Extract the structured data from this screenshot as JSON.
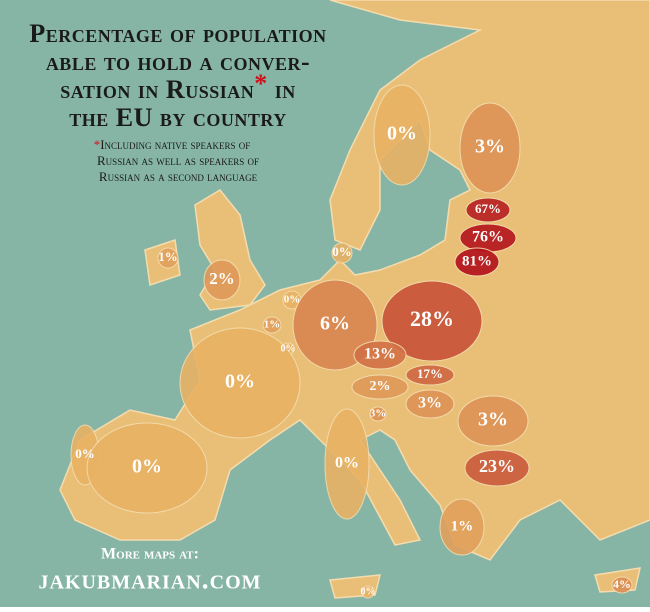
{
  "title": [
    "Percentage of population",
    "able to hold a conver-",
    "sation in Russian",
    "*",
    " in",
    "the EU by country"
  ],
  "footnote": [
    "*",
    "Including native speakers of",
    "Russian as well as speakers of",
    "Russian as a second language"
  ],
  "credit": [
    "More maps at:",
    "jakubmarian.com"
  ],
  "regions": [
    {
      "value": 0,
      "label": "0%"
    },
    {
      "value": 3,
      "label": "3%"
    },
    {
      "value": 67,
      "label": "67%"
    },
    {
      "value": 76,
      "label": "76%"
    },
    {
      "value": 81,
      "label": "81%"
    },
    {
      "value": 1,
      "label": "1%"
    },
    {
      "value": 2,
      "label": "2%"
    },
    {
      "value": 0,
      "label": "0%"
    },
    {
      "value": 0,
      "label": "0%"
    },
    {
      "value": 1,
      "label": "1%"
    },
    {
      "value": 0,
      "label": "0%"
    },
    {
      "value": 6,
      "label": "6%"
    },
    {
      "value": 28,
      "label": "28%"
    },
    {
      "value": 13,
      "label": "13%"
    },
    {
      "value": 17,
      "label": "17%"
    },
    {
      "value": 2,
      "label": "2%"
    },
    {
      "value": 3,
      "label": "3%"
    },
    {
      "value": 3,
      "label": "3%"
    },
    {
      "value": 0,
      "label": "0%"
    },
    {
      "value": 3,
      "label": "3%"
    },
    {
      "value": 0,
      "label": "0%"
    },
    {
      "value": 0,
      "label": "0%"
    },
    {
      "value": 0,
      "label": "0%"
    },
    {
      "value": 23,
      "label": "23%"
    },
    {
      "value": 1,
      "label": "1%"
    },
    {
      "value": 0,
      "label": "0%"
    },
    {
      "value": 4,
      "label": "4%"
    }
  ]
}
